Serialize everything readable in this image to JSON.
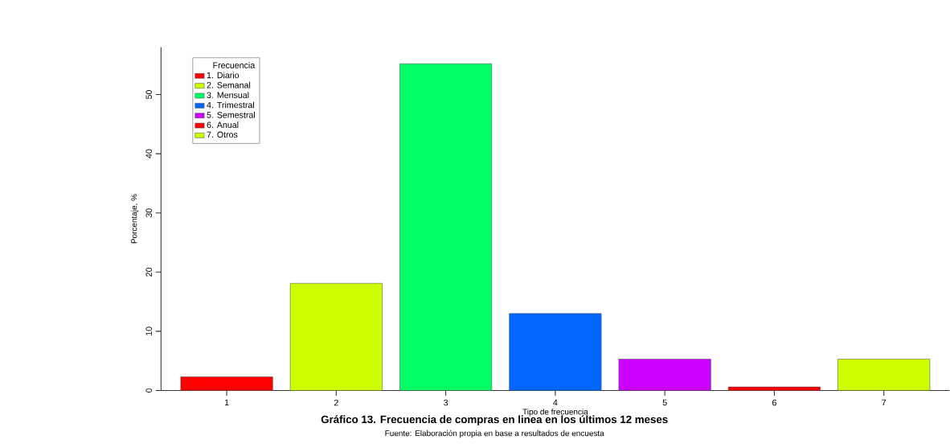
{
  "chart_data": {
    "type": "bar",
    "title": "Gráfico 13. Frecuencia de compras en linea en los últimos 12 meses",
    "xlabel": "Tipo de frecuencia",
    "ylabel": "Porcentaje, %",
    "legend_title": "Frecuencia",
    "annotations": [
      "Fuente: Elaboración propia en base a resultados de encuesta"
    ],
    "categories": [
      "1",
      "2",
      "3",
      "4",
      "5",
      "6",
      "7"
    ],
    "series": [
      {
        "name": "1. Diario",
        "color": "#ff0000",
        "values": [
          2.3,
          null,
          null,
          null,
          null,
          null,
          null
        ]
      },
      {
        "name": "2. Semanal",
        "color": "#ccff00",
        "values": [
          null,
          18.1,
          null,
          null,
          null,
          null,
          null
        ]
      },
      {
        "name": "3. Mensual",
        "color": "#00ff66",
        "values": [
          null,
          null,
          55.2,
          null,
          null,
          null,
          null
        ]
      },
      {
        "name": "4. Trimestral",
        "color": "#0066ff",
        "values": [
          null,
          null,
          null,
          13.0,
          null,
          null,
          null
        ]
      },
      {
        "name": "5. Semestral",
        "color": "#cc00ff",
        "values": [
          null,
          null,
          null,
          null,
          5.3,
          null,
          null
        ]
      },
      {
        "name": "6. Anual",
        "color": "#ff0000",
        "values": [
          null,
          null,
          null,
          null,
          null,
          0.6,
          null
        ]
      },
      {
        "name": "7. Otros",
        "color": "#ccff00",
        "values": [
          null,
          null,
          null,
          null,
          null,
          null,
          5.3
        ]
      }
    ],
    "ylim": [
      0,
      58
    ],
    "yticks": [
      0,
      10,
      20,
      30,
      40,
      50
    ],
    "legend": "top left"
  }
}
